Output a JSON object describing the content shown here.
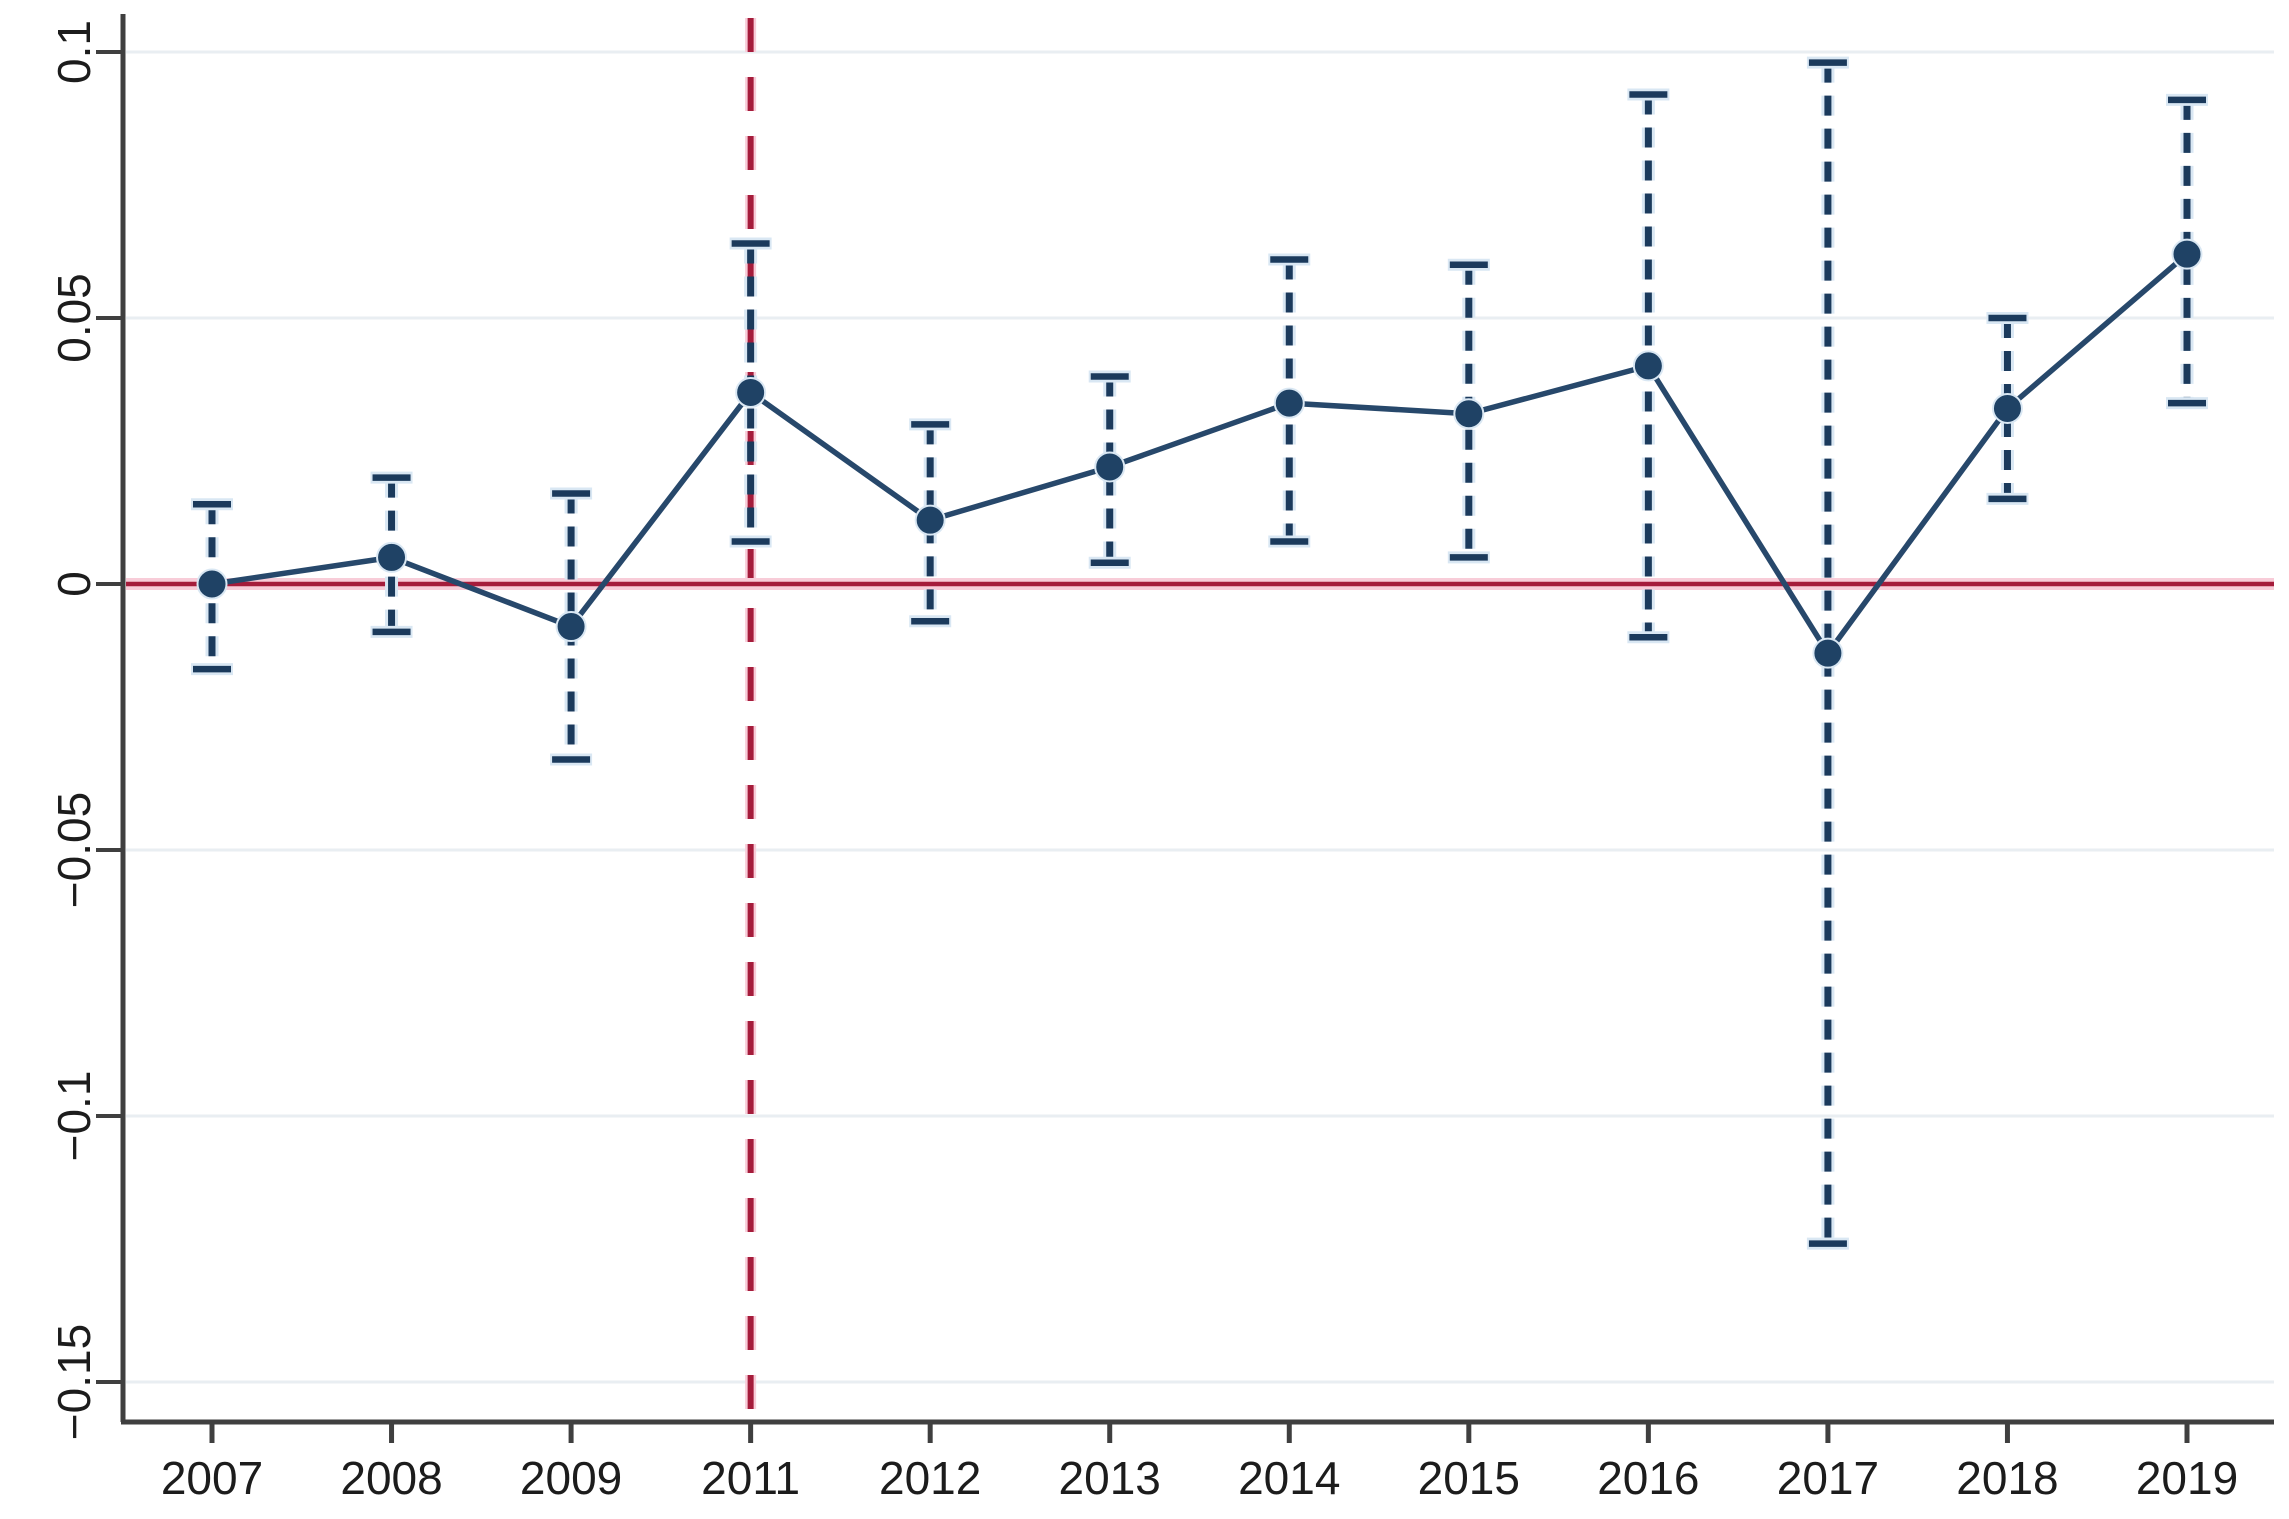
{
  "chart_data": {
    "type": "line",
    "subtype": "coefficient-event-study-with-ci",
    "title": "",
    "xlabel": "",
    "ylabel": "",
    "categories": [
      "2007",
      "2008",
      "2009",
      "2011",
      "2012",
      "2013",
      "2014",
      "2015",
      "2016",
      "2017",
      "2018",
      "2019"
    ],
    "series": [
      {
        "name": "point-estimate",
        "values": [
          0.0,
          0.005,
          -0.008,
          0.036,
          0.012,
          0.022,
          0.034,
          0.032,
          0.041,
          -0.013,
          0.033,
          0.062
        ],
        "ci_low": [
          -0.016,
          -0.009,
          -0.033,
          0.008,
          -0.007,
          0.004,
          0.008,
          0.005,
          -0.01,
          -0.124,
          0.016,
          0.034
        ],
        "ci_high": [
          0.015,
          0.02,
          0.017,
          0.064,
          0.03,
          0.039,
          0.061,
          0.06,
          0.092,
          0.098,
          0.05,
          0.091
        ]
      }
    ],
    "y_ticks": [
      0.1,
      0.05,
      0,
      -0.05,
      -0.1,
      -0.15
    ],
    "y_tick_labels": [
      "0.1",
      "0.05",
      "0",
      "−0.05",
      "−0.1",
      "−0.15"
    ],
    "ylim": [
      -0.157,
      0.106
    ],
    "grid": "horizontal",
    "legend_position": "none",
    "reference_lines": [
      {
        "orientation": "horizontal",
        "value": 0,
        "style": "solid",
        "color": "#a51c3b"
      },
      {
        "orientation": "vertical",
        "category": "2011",
        "style": "dashed",
        "color": "#a51c3b"
      }
    ]
  },
  "colors": {
    "background": "#ffffff",
    "marker": "#1f4265",
    "series_line": "#27486b",
    "error_bar": "#1b3a5c",
    "error_bar_halo": "#d9e7f3",
    "gridline": "#e9eef2",
    "axis": "#3f3f3f",
    "tick_label": "#1c1c1c",
    "reference_red": "#a51c3b",
    "reference_red_glow": "#f8ccd8"
  }
}
